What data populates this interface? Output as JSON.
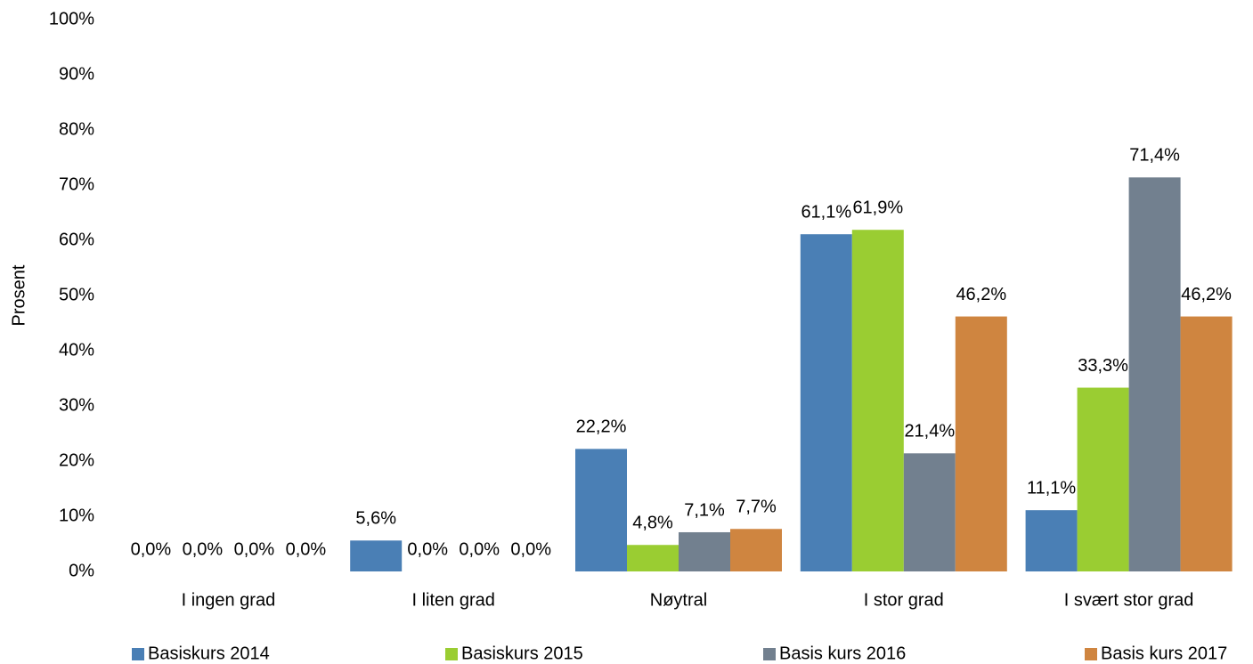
{
  "chart_data": {
    "type": "bar",
    "y_label": "Prosent",
    "categories": [
      "I ingen grad",
      "I liten grad",
      "Nøytral",
      "I stor grad",
      "I svært stor grad"
    ],
    "series": [
      {
        "name": "Basiskurs 2014",
        "color": "#4a7fb5",
        "values": [
          0.0,
          5.6,
          22.2,
          61.1,
          11.1
        ],
        "value_labels": [
          "0,0%",
          "5,6%",
          "22,2%",
          "61,1%",
          "11,1%"
        ]
      },
      {
        "name": "Basiskurs 2015",
        "color": "#9acd32",
        "values": [
          0.0,
          0.0,
          4.8,
          61.9,
          33.3
        ],
        "value_labels": [
          "0,0%",
          "0,0%",
          "4,8%",
          "61,9%",
          "33,3%"
        ]
      },
      {
        "name": "Basis kurs 2016",
        "color": "#72808f",
        "values": [
          0.0,
          0.0,
          7.1,
          21.4,
          71.4
        ],
        "value_labels": [
          "0,0%",
          "0,0%",
          "7,1%",
          "21,4%",
          "71,4%"
        ]
      },
      {
        "name": "Basis kurs 2017",
        "color": "#cf8540",
        "values": [
          0.0,
          0.0,
          7.7,
          46.2,
          46.2
        ],
        "value_labels": [
          "0,0%",
          "0,0%",
          "7,7%",
          "46,2%",
          "46,2%"
        ]
      }
    ],
    "ylim": [
      0,
      100
    ],
    "yticks": [
      {
        "value": 0,
        "label": "0%"
      },
      {
        "value": 10,
        "label": "10%"
      },
      {
        "value": 20,
        "label": "20%"
      },
      {
        "value": 30,
        "label": "30%"
      },
      {
        "value": 40,
        "label": "40%"
      },
      {
        "value": 50,
        "label": "50%"
      },
      {
        "value": 60,
        "label": "60%"
      },
      {
        "value": 70,
        "label": "70%"
      },
      {
        "value": 80,
        "label": "80%"
      },
      {
        "value": 90,
        "label": "90%"
      },
      {
        "value": 100,
        "label": "100%"
      }
    ],
    "grid": false,
    "legend": "bottom"
  }
}
